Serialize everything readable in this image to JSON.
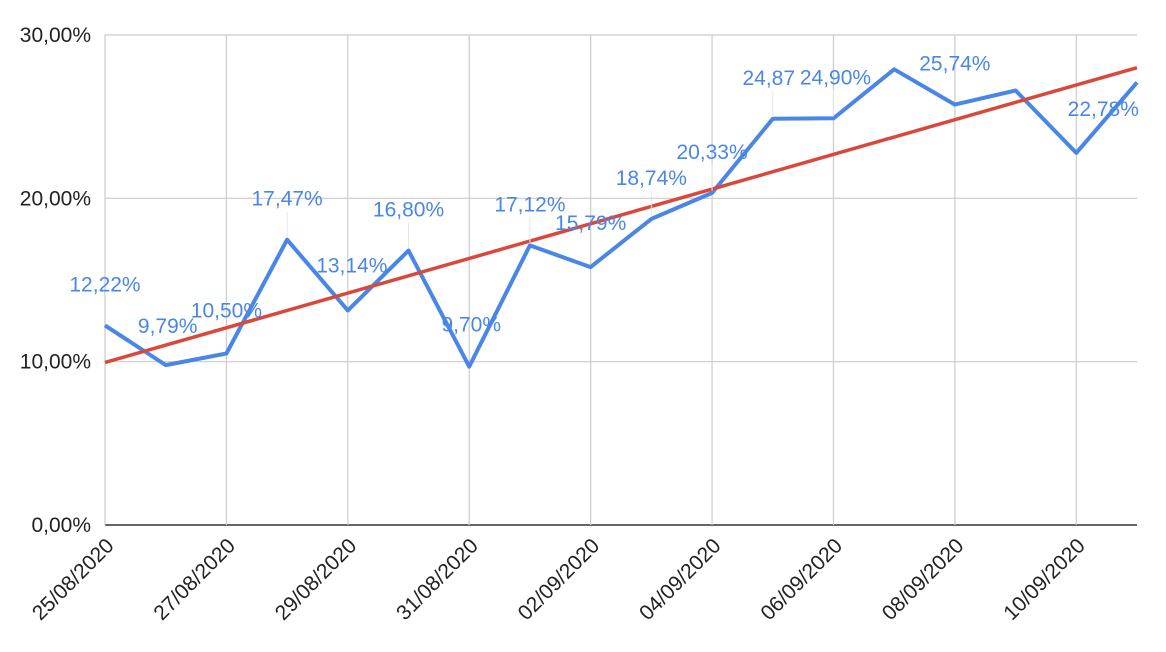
{
  "chart_data": {
    "type": "line",
    "title": "",
    "xlabel": "",
    "ylabel": "",
    "ylim": [
      0,
      30
    ],
    "y_ticks": [
      "0,00%",
      "10,00%",
      "20,00%",
      "30,00%"
    ],
    "x_ticks": [
      "25/08/2020",
      "27/08/2020",
      "29/08/2020",
      "31/08/2020",
      "02/09/2020",
      "04/09/2020",
      "06/09/2020",
      "08/09/2020",
      "10/09/2020"
    ],
    "grid": true,
    "x": [
      "25/08/2020",
      "26/08/2020",
      "27/08/2020",
      "28/08/2020",
      "29/08/2020",
      "30/08/2020",
      "31/08/2020",
      "01/09/2020",
      "02/09/2020",
      "03/09/2020",
      "04/09/2020",
      "05/09/2020",
      "06/09/2020",
      "07/09/2020",
      "08/09/2020",
      "09/09/2020",
      "10/09/2020",
      "11/09/2020"
    ],
    "series": [
      {
        "color": "#4a86e8",
        "values": [
          12.22,
          9.79,
          10.5,
          17.47,
          13.14,
          16.8,
          9.7,
          17.12,
          15.79,
          18.74,
          20.33,
          24.87,
          24.9,
          27.9,
          25.74,
          26.6,
          22.78,
          27.1
        ],
        "labels": [
          "12,22%",
          "9,79%",
          "10,50%",
          "17,47%",
          "13,14%",
          "16,80%",
          "9,70%",
          "17,12%",
          "15,79%",
          "18,74%",
          "20,33%",
          "24,87",
          "24,90%",
          "",
          "25,74%",
          "",
          "22,78%",
          ""
        ]
      },
      {
        "type": "trendline",
        "color": "#d9493b",
        "start": 9.95,
        "end": 28.0
      }
    ]
  }
}
